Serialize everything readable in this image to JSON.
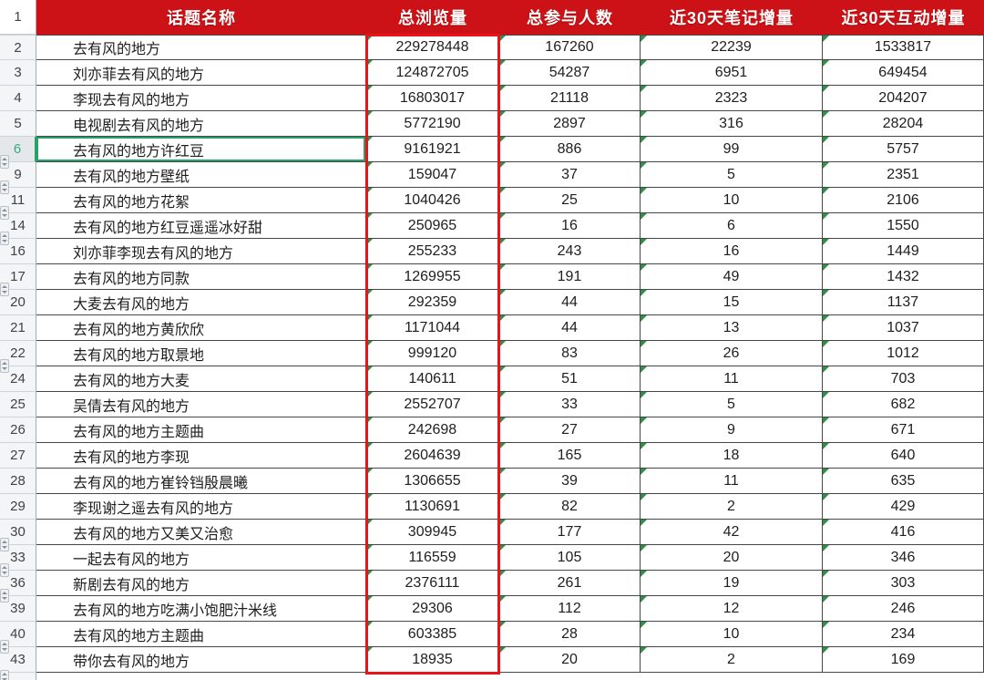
{
  "colors": {
    "header_bg": "#cc1217",
    "header_text": "#ffffff",
    "selection_border": "#e9141a",
    "selected_row_accent": "#26a269",
    "text_error_triangle": "#2f8f46",
    "grid_line": "#474747",
    "row_header_bg": "#f3f5f7"
  },
  "table": {
    "corner_label": "1",
    "columns": [
      {
        "label": "话题名称"
      },
      {
        "label": "总浏览量"
      },
      {
        "label": "总参与人数"
      },
      {
        "label": "近30天笔记增量"
      },
      {
        "label": "近30天互动增量"
      }
    ],
    "rows": [
      {
        "row_num": "2",
        "topic": "去有风的地方",
        "views": "229278448",
        "participants": "167260",
        "notes_30d": "22239",
        "interactions_30d": "1533817"
      },
      {
        "row_num": "3",
        "topic": "刘亦菲去有风的地方",
        "views": "124872705",
        "participants": "54287",
        "notes_30d": "6951",
        "interactions_30d": "649454"
      },
      {
        "row_num": "4",
        "topic": "李现去有风的地方",
        "views": "16803017",
        "participants": "21118",
        "notes_30d": "2323",
        "interactions_30d": "204207"
      },
      {
        "row_num": "5",
        "topic": "电视剧去有风的地方",
        "views": "5772190",
        "participants": "2897",
        "notes_30d": "316",
        "interactions_30d": "28204"
      },
      {
        "row_num": "6",
        "topic": "去有风的地方许红豆",
        "views": "9161921",
        "participants": "886",
        "notes_30d": "99",
        "interactions_30d": "5757",
        "selected": true
      },
      {
        "row_num": "9",
        "topic": "去有风的地方壁纸",
        "views": "159047",
        "participants": "37",
        "notes_30d": "5",
        "interactions_30d": "2351",
        "gap_before": true
      },
      {
        "row_num": "11",
        "topic": "去有风的地方花絮",
        "views": "1040426",
        "participants": "25",
        "notes_30d": "10",
        "interactions_30d": "2106",
        "gap_before": true
      },
      {
        "row_num": "14",
        "topic": "去有风的地方红豆遥遥冰好甜",
        "views": "250965",
        "participants": "16",
        "notes_30d": "6",
        "interactions_30d": "1550",
        "gap_before": true
      },
      {
        "row_num": "16",
        "topic": "刘亦菲李现去有风的地方",
        "views": "255233",
        "participants": "243",
        "notes_30d": "16",
        "interactions_30d": "1449",
        "gap_before": true
      },
      {
        "row_num": "17",
        "topic": "去有风的地方同款",
        "views": "1269955",
        "participants": "191",
        "notes_30d": "49",
        "interactions_30d": "1432"
      },
      {
        "row_num": "20",
        "topic": "大麦去有风的地方",
        "views": "292359",
        "participants": "44",
        "notes_30d": "15",
        "interactions_30d": "1137",
        "gap_before": true
      },
      {
        "row_num": "21",
        "topic": "去有风的地方黄欣欣",
        "views": "1171044",
        "participants": "44",
        "notes_30d": "13",
        "interactions_30d": "1037"
      },
      {
        "row_num": "22",
        "topic": "去有风的地方取景地",
        "views": "999120",
        "participants": "83",
        "notes_30d": "26",
        "interactions_30d": "1012"
      },
      {
        "row_num": "24",
        "topic": "去有风的地方大麦",
        "views": "140611",
        "participants": "51",
        "notes_30d": "11",
        "interactions_30d": "703",
        "gap_before": true
      },
      {
        "row_num": "25",
        "topic": "吴倩去有风的地方",
        "views": "2552707",
        "participants": "33",
        "notes_30d": "5",
        "interactions_30d": "682"
      },
      {
        "row_num": "26",
        "topic": "去有风的地方主题曲",
        "views": "242698",
        "participants": "27",
        "notes_30d": "9",
        "interactions_30d": "671"
      },
      {
        "row_num": "27",
        "topic": "去有风的地方李现",
        "views": "2604639",
        "participants": "165",
        "notes_30d": "18",
        "interactions_30d": "640"
      },
      {
        "row_num": "28",
        "topic": "去有风的地方崔铃铛殷晨曦",
        "views": "1306655",
        "participants": "39",
        "notes_30d": "11",
        "interactions_30d": "635"
      },
      {
        "row_num": "29",
        "topic": "李现谢之遥去有风的地方",
        "views": "1130691",
        "participants": "82",
        "notes_30d": "2",
        "interactions_30d": "429"
      },
      {
        "row_num": "30",
        "topic": "去有风的地方又美又治愈",
        "views": "309945",
        "participants": "177",
        "notes_30d": "42",
        "interactions_30d": "416"
      },
      {
        "row_num": "33",
        "topic": "一起去有风的地方",
        "views": "116559",
        "participants": "105",
        "notes_30d": "20",
        "interactions_30d": "346",
        "gap_before": true
      },
      {
        "row_num": "36",
        "topic": "新剧去有风的地方",
        "views": "2376111",
        "participants": "261",
        "notes_30d": "19",
        "interactions_30d": "303",
        "gap_before": true
      },
      {
        "row_num": "39",
        "topic": "去有风的地方吃满小饱肥汁米线",
        "views": "29306",
        "participants": "112",
        "notes_30d": "12",
        "interactions_30d": "246",
        "gap_before": true
      },
      {
        "row_num": "40",
        "topic": "去有风的地方主题曲",
        "views": "603385",
        "participants": "28",
        "notes_30d": "10",
        "interactions_30d": "234"
      },
      {
        "row_num": "43",
        "topic": "带你去有风的地方",
        "views": "18935",
        "participants": "20",
        "notes_30d": "2",
        "interactions_30d": "169",
        "gap_before": true
      }
    ]
  }
}
